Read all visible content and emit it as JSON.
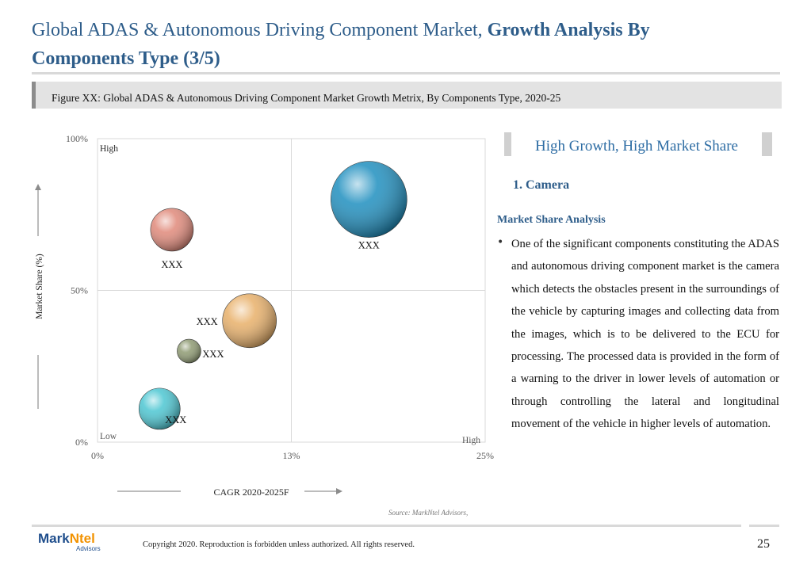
{
  "header": {
    "title_regular": "Global ADAS & Autonomous Driving Component Market, ",
    "title_bold": "Growth Analysis By Components Type (3/5)"
  },
  "figure": {
    "caption": "Figure XX: Global ADAS & Autonomous Driving Component Market Growth Metrix, By Components Type, 2020-25"
  },
  "chart_data": {
    "type": "scatter",
    "subtype": "bubble",
    "title": "",
    "xlabel": "CAGR 2020-2025F",
    "ylabel": "Market Share (%)",
    "xlim": [
      0,
      25
    ],
    "ylim": [
      0,
      100
    ],
    "x_ticks": [
      "0%",
      "13%",
      "25%"
    ],
    "x_tick_values": [
      0,
      12.5,
      25
    ],
    "y_ticks": [
      "0%",
      "50%",
      "100%"
    ],
    "y_tick_values": [
      0,
      50,
      100
    ],
    "grid": false,
    "quadrant_lines": {
      "x": 12.5,
      "y": 50
    },
    "corner_labels": {
      "high_top": "High",
      "low_bottom": "Low",
      "high_right": "High"
    },
    "points": [
      {
        "label": "XXX",
        "x": 17.5,
        "y": 80,
        "size": 48,
        "color": "#1f8fbf",
        "label_pos": "below"
      },
      {
        "label": "XXX",
        "x": 4.8,
        "y": 70,
        "size": 27,
        "color": "#e0897a",
        "label_pos": "below"
      },
      {
        "label": "XXX",
        "x": 9.8,
        "y": 40,
        "size": 34,
        "color": "#e8b06a",
        "label_pos": "left"
      },
      {
        "label": "XXX",
        "x": 5.9,
        "y": 30,
        "size": 15,
        "color": "#8e9a72",
        "label_pos": "right"
      },
      {
        "label": "XXX",
        "x": 4.0,
        "y": 11,
        "size": 26,
        "color": "#4cc6d2",
        "label_pos": "right"
      }
    ],
    "source": "Source: MarkNtel Advisors,"
  },
  "side_panel": {
    "heading": "High Growth, High Market Share",
    "category": "1. Camera",
    "analysis_heading": "Market Share Analysis",
    "bullet": "•",
    "analysis_text": "One of the significant components constituting the ADAS and autonomous driving component market is the camera which detects the obstacles present in the surroundings of the vehicle by capturing images and collecting data from the images, which is to be delivered to the ECU for processing. The processed data is provided in the form of a warning to the driver in lower levels of automation or through controlling the lateral and longitudinal movement of the vehicle in higher levels of automation."
  },
  "footer": {
    "logo_main": "Mark",
    "logo_accent": "Ntel",
    "logo_sub": "Advisors",
    "copyright": "Copyright 2020. Reproduction is forbidden unless authorized. All rights reserved.",
    "page_number": "25"
  }
}
